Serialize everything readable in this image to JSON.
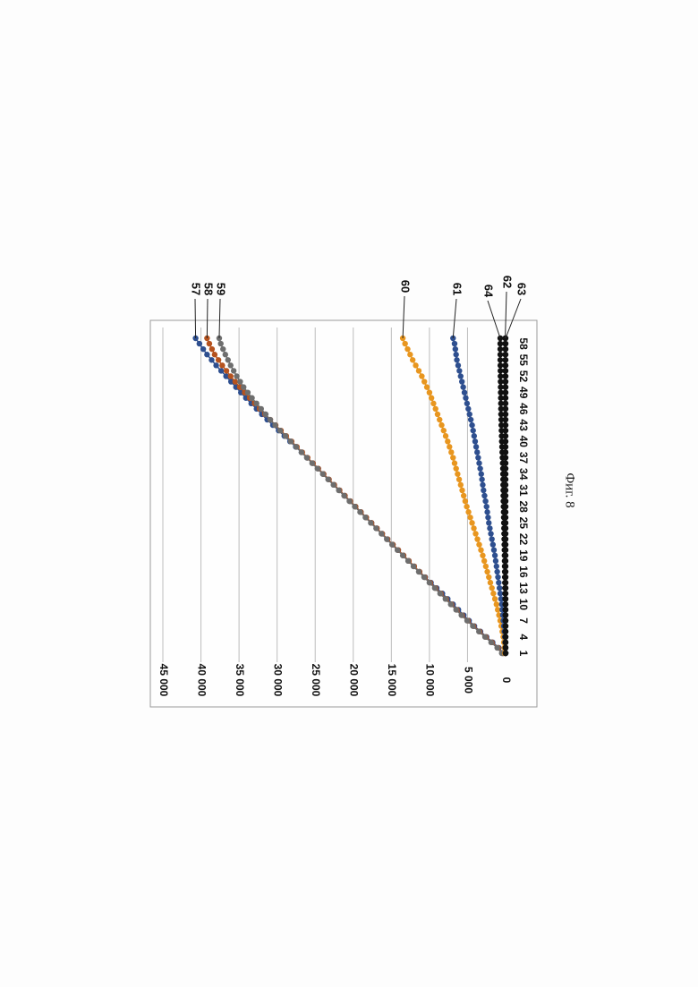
{
  "figure": {
    "caption": "Фиг. 8"
  },
  "chart_data": {
    "type": "line",
    "orientation": "rotated 90° clockwise on page",
    "title": "",
    "xlabel": "",
    "ylabel": "",
    "x_tick_labels": [
      "1",
      "4",
      "7",
      "10",
      "13",
      "16",
      "19",
      "22",
      "25",
      "28",
      "31",
      "34",
      "37",
      "40",
      "43",
      "46",
      "49",
      "52",
      "55",
      "58"
    ],
    "x_range": [
      1,
      59
    ],
    "y_tick_labels": [
      "0",
      "5 000",
      "10 000",
      "15 000",
      "20 000",
      "25 000",
      "30 000",
      "35 000",
      "40 000",
      "45 000"
    ],
    "ylim": [
      0,
      45000
    ],
    "grid": "horizontal gridlines (value axis)",
    "legend": "none; series identified by numbered leader labels at the series ends",
    "series": [
      {
        "name": "57",
        "color": "#2e4f8f",
        "marker": "circle",
        "anchors": [
          [
            1,
            300
          ],
          [
            2,
            900
          ],
          [
            3,
            1700
          ],
          [
            4,
            2500
          ],
          [
            5,
            3300
          ],
          [
            6,
            4100
          ],
          [
            8,
            5500
          ],
          [
            10,
            6900
          ],
          [
            12,
            8300
          ],
          [
            14,
            9800
          ],
          [
            16,
            11300
          ],
          [
            18,
            12700
          ],
          [
            20,
            14100
          ],
          [
            22,
            15500
          ],
          [
            24,
            16900
          ],
          [
            26,
            18300
          ],
          [
            28,
            19700
          ],
          [
            30,
            21100
          ],
          [
            32,
            22500
          ],
          [
            34,
            23900
          ],
          [
            36,
            25300
          ],
          [
            38,
            26800
          ],
          [
            40,
            28300
          ],
          [
            42,
            29800
          ],
          [
            44,
            31300
          ],
          [
            46,
            32700
          ],
          [
            48,
            34100
          ],
          [
            50,
            35400
          ],
          [
            52,
            36700
          ],
          [
            54,
            38000
          ],
          [
            56,
            39200
          ],
          [
            58,
            40200
          ],
          [
            59,
            40700
          ]
        ]
      },
      {
        "name": "58",
        "color": "#b5521e",
        "marker": "circle",
        "anchors": [
          [
            1,
            400
          ],
          [
            2,
            1000
          ],
          [
            3,
            1800
          ],
          [
            4,
            2600
          ],
          [
            5,
            3400
          ],
          [
            6,
            4200
          ],
          [
            8,
            5700
          ],
          [
            10,
            7100
          ],
          [
            12,
            8500
          ],
          [
            14,
            9900
          ],
          [
            16,
            11300
          ],
          [
            18,
            12700
          ],
          [
            20,
            14100
          ],
          [
            22,
            15500
          ],
          [
            24,
            16900
          ],
          [
            26,
            18300
          ],
          [
            28,
            19700
          ],
          [
            30,
            21100
          ],
          [
            32,
            22500
          ],
          [
            34,
            23900
          ],
          [
            36,
            25300
          ],
          [
            38,
            26700
          ],
          [
            40,
            28100
          ],
          [
            42,
            29500
          ],
          [
            44,
            30900
          ],
          [
            46,
            32300
          ],
          [
            48,
            33600
          ],
          [
            50,
            34900
          ],
          [
            52,
            36100
          ],
          [
            54,
            37200
          ],
          [
            56,
            38200
          ],
          [
            58,
            38900
          ],
          [
            59,
            39200
          ]
        ]
      },
      {
        "name": "59",
        "color": "#6e6e6e",
        "marker": "circle",
        "anchors": [
          [
            1,
            500
          ],
          [
            2,
            1100
          ],
          [
            3,
            1900
          ],
          [
            4,
            2700
          ],
          [
            5,
            3500
          ],
          [
            6,
            4300
          ],
          [
            8,
            5800
          ],
          [
            10,
            7200
          ],
          [
            12,
            8600
          ],
          [
            14,
            10000
          ],
          [
            16,
            11400
          ],
          [
            18,
            12800
          ],
          [
            20,
            14200
          ],
          [
            22,
            15600
          ],
          [
            24,
            17000
          ],
          [
            26,
            18400
          ],
          [
            28,
            19800
          ],
          [
            30,
            21200
          ],
          [
            32,
            22600
          ],
          [
            34,
            24000
          ],
          [
            36,
            25400
          ],
          [
            38,
            26800
          ],
          [
            40,
            28200
          ],
          [
            42,
            29600
          ],
          [
            44,
            30900
          ],
          [
            46,
            32100
          ],
          [
            48,
            33300
          ],
          [
            50,
            34400
          ],
          [
            52,
            35300
          ],
          [
            54,
            36100
          ],
          [
            56,
            36800
          ],
          [
            58,
            37400
          ],
          [
            59,
            37600
          ]
        ]
      },
      {
        "name": "60",
        "color": "#e8961f",
        "marker": "circle",
        "anchors": [
          [
            1,
            100
          ],
          [
            4,
            300
          ],
          [
            7,
            700
          ],
          [
            10,
            1200
          ],
          [
            13,
            1800
          ],
          [
            16,
            2400
          ],
          [
            19,
            3000
          ],
          [
            22,
            3700
          ],
          [
            25,
            4400
          ],
          [
            28,
            5100
          ],
          [
            31,
            5700
          ],
          [
            34,
            6300
          ],
          [
            37,
            6900
          ],
          [
            40,
            7600
          ],
          [
            43,
            8400
          ],
          [
            46,
            9200
          ],
          [
            49,
            10000
          ],
          [
            52,
            11000
          ],
          [
            55,
            12200
          ],
          [
            58,
            13200
          ],
          [
            59,
            13500
          ]
        ]
      },
      {
        "name": "61",
        "color": "#2e4f8f",
        "marker": "circle",
        "anchors": [
          [
            1,
            0
          ],
          [
            4,
            100
          ],
          [
            7,
            300
          ],
          [
            10,
            500
          ],
          [
            13,
            800
          ],
          [
            16,
            1100
          ],
          [
            19,
            1400
          ],
          [
            22,
            1800
          ],
          [
            25,
            2200
          ],
          [
            28,
            2500
          ],
          [
            31,
            2900
          ],
          [
            34,
            3200
          ],
          [
            37,
            3600
          ],
          [
            40,
            4000
          ],
          [
            43,
            4400
          ],
          [
            46,
            4900
          ],
          [
            49,
            5400
          ],
          [
            52,
            5900
          ],
          [
            55,
            6400
          ],
          [
            58,
            6700
          ],
          [
            59,
            6900
          ]
        ]
      },
      {
        "name": "64",
        "color": "#111111",
        "marker": "circle",
        "anchors": [
          [
            1,
            0
          ],
          [
            10,
            50
          ],
          [
            20,
            150
          ],
          [
            30,
            300
          ],
          [
            35,
            350
          ],
          [
            40,
            500
          ],
          [
            45,
            600
          ],
          [
            50,
            650
          ],
          [
            55,
            700
          ],
          [
            59,
            700
          ]
        ]
      },
      {
        "name": "62",
        "color": "#111111",
        "marker": "circle",
        "anchors": [
          [
            1,
            0
          ],
          [
            20,
            20
          ],
          [
            40,
            40
          ],
          [
            59,
            50
          ]
        ]
      },
      {
        "name": "63",
        "color": "#111111",
        "marker": "circle",
        "anchors": [
          [
            1,
            0
          ],
          [
            59,
            0
          ]
        ]
      }
    ]
  }
}
